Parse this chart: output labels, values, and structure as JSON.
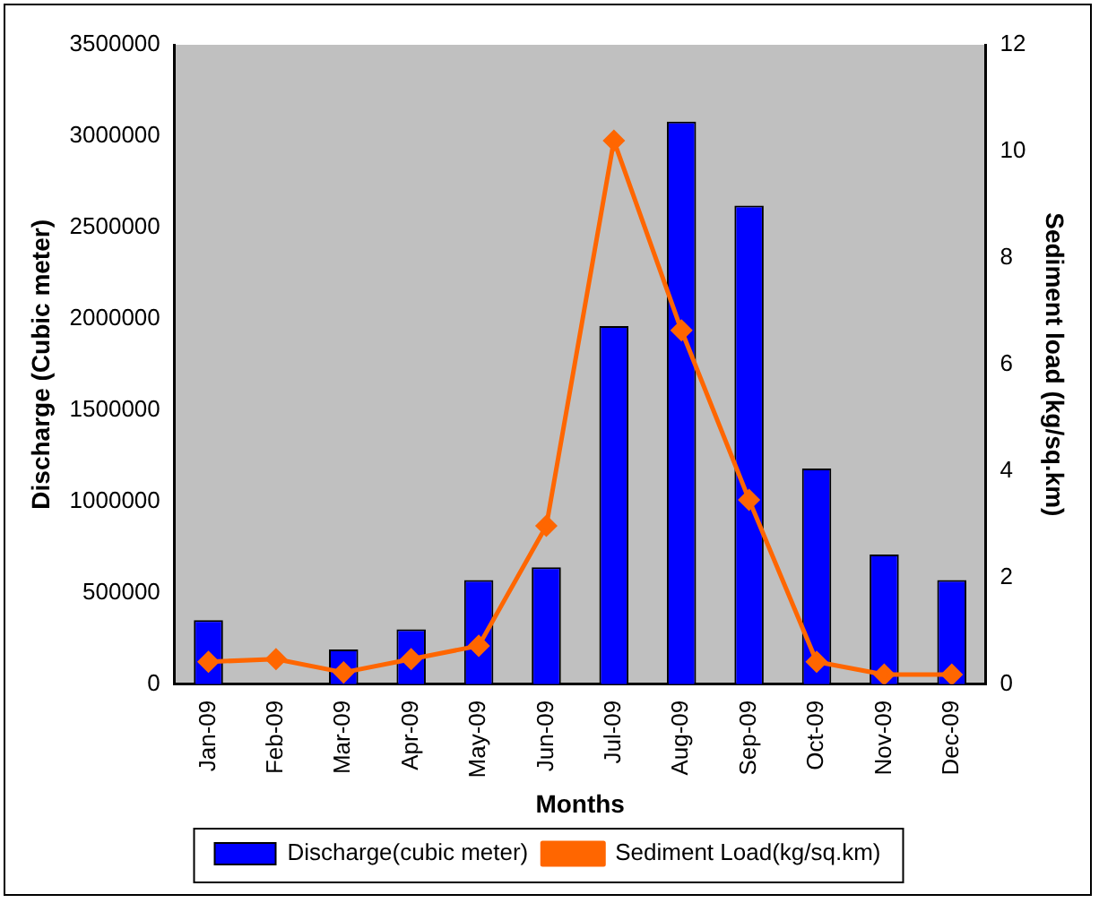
{
  "chart_data": {
    "type": "bar",
    "xlabel": "Months",
    "ylabel": "Discharge (Cubic meter)",
    "y2label": "Sediment load (kg/sq.km)",
    "categories": [
      "Jan-09",
      "Feb-09",
      "Mar-09",
      "Apr-09",
      "May-09",
      "Jun-09",
      "Jul-09",
      "Aug-09",
      "Sep-09",
      "Oct-09",
      "Nov-09",
      "Dec-09"
    ],
    "series": [
      {
        "name": "Discharge(cubic meter)",
        "color": "#0000ff",
        "values": [
          350000,
          null,
          190000,
          300000,
          570000,
          640000,
          1960000,
          3080000,
          2620000,
          1180000,
          710000,
          570000
        ]
      },
      {
        "name": "Sediment Load(kg/sq.km)",
        "type": "line",
        "axis": "y2",
        "color": "#ff6600",
        "marker": "diamond",
        "values": [
          0.42,
          0.47,
          0.22,
          0.47,
          0.72,
          2.97,
          10.2,
          6.64,
          3.46,
          0.42,
          0.18,
          0.18
        ]
      }
    ],
    "ylim": [
      0,
      3500000
    ],
    "yticks": [
      0,
      500000,
      1000000,
      1500000,
      2000000,
      2500000,
      3000000,
      3500000
    ],
    "y2lim": [
      0,
      12
    ],
    "y2ticks": [
      0,
      2,
      4,
      6,
      8,
      10,
      12
    ],
    "grid": false,
    "legend": "bottom"
  }
}
